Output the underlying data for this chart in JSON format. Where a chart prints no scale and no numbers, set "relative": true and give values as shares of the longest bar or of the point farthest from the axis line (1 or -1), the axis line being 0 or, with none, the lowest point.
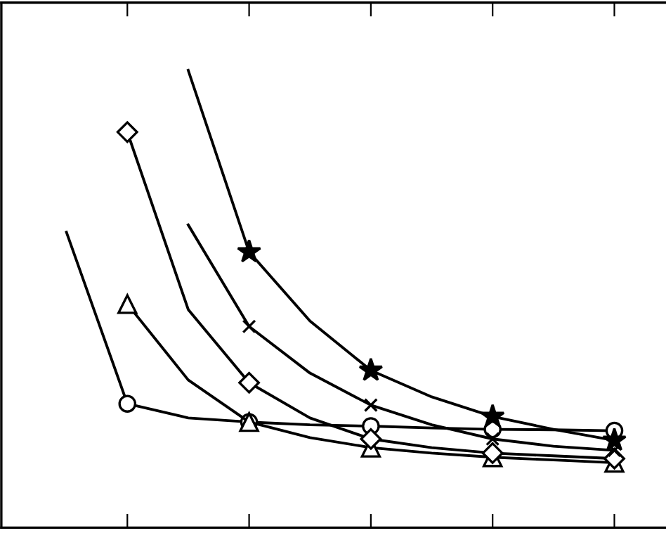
{
  "chart_data": {
    "type": "line",
    "relative": true,
    "categories": [
      null,
      null,
      null,
      null,
      null,
      null,
      null,
      null,
      null,
      null
    ],
    "grid": false,
    "legend": false,
    "line_style": "solid",
    "series": [
      {
        "color": "#000000",
        "marker": "circle",
        "values": [
          0.646,
          0.271,
          0.24,
          0.231,
          0.225,
          0.222,
          0.218,
          0.215,
          0.214,
          0.212
        ]
      },
      {
        "color": "#000000",
        "marker": "triangle",
        "values": [
          null,
          0.489,
          0.323,
          0.231,
          0.197,
          0.175,
          0.163,
          0.154,
          0.148,
          0.142
        ]
      },
      {
        "color": "#000000",
        "marker": "diamond",
        "values": [
          null,
          0.865,
          0.477,
          0.317,
          0.24,
          0.194,
          0.175,
          0.163,
          0.157,
          0.151
        ]
      },
      {
        "color": "#000000",
        "marker": "cross",
        "values": [
          null,
          null,
          0.662,
          0.44,
          0.338,
          0.268,
          0.225,
          0.194,
          0.178,
          0.169
        ]
      },
      {
        "color": "#000000",
        "marker": "star",
        "values": [
          null,
          null,
          1,
          0.603,
          0.452,
          0.344,
          0.286,
          0.243,
          0.215,
          0.191
        ]
      }
    ]
  }
}
